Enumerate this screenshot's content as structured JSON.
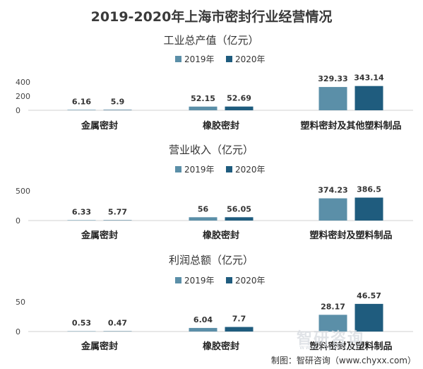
{
  "title": "2019-2020年上海市密封行业经营情况",
  "footer": "制图：智研咨询（www.chyxx.com）",
  "watermark": "智研咨询",
  "watermark_sub": "www.chyxx.com",
  "colors": {
    "2019": "#5b8fa8",
    "2020": "#1f5c7e"
  },
  "chart_data": [
    {
      "type": "bar",
      "title": "工业总产值（亿元）",
      "categories": [
        "金属密封",
        "橡胶密封",
        "塑料密封及其他塑料制品"
      ],
      "series": [
        {
          "name": "2019年",
          "values": [
            6.16,
            52.15,
            329.33
          ]
        },
        {
          "name": "2020年",
          "values": [
            5.9,
            52.69,
            343.14
          ]
        }
      ],
      "ylim": [
        0,
        400
      ],
      "yticks": [
        0,
        200,
        400
      ],
      "legend": "top-center"
    },
    {
      "type": "bar",
      "title": "营业收入（亿元）",
      "categories": [
        "金属密封",
        "橡胶密封",
        "塑料密封及塑料制品"
      ],
      "series": [
        {
          "name": "2019年",
          "values": [
            6.33,
            56,
            374.23
          ]
        },
        {
          "name": "2020年",
          "values": [
            5.77,
            56.05,
            386.5
          ]
        }
      ],
      "ylim": [
        0,
        500
      ],
      "yticks": [
        0,
        500
      ],
      "legend": "top-center"
    },
    {
      "type": "bar",
      "title": "利润总额（亿元）",
      "categories": [
        "金属密封",
        "橡胶密封",
        "塑料密封及塑料制品"
      ],
      "series": [
        {
          "name": "2019年",
          "values": [
            0.53,
            6.04,
            28.17
          ]
        },
        {
          "name": "2020年",
          "values": [
            0.47,
            7.7,
            46.57
          ]
        }
      ],
      "ylim": [
        0,
        50
      ],
      "yticks": [
        0,
        50
      ],
      "legend": "top-center"
    }
  ]
}
